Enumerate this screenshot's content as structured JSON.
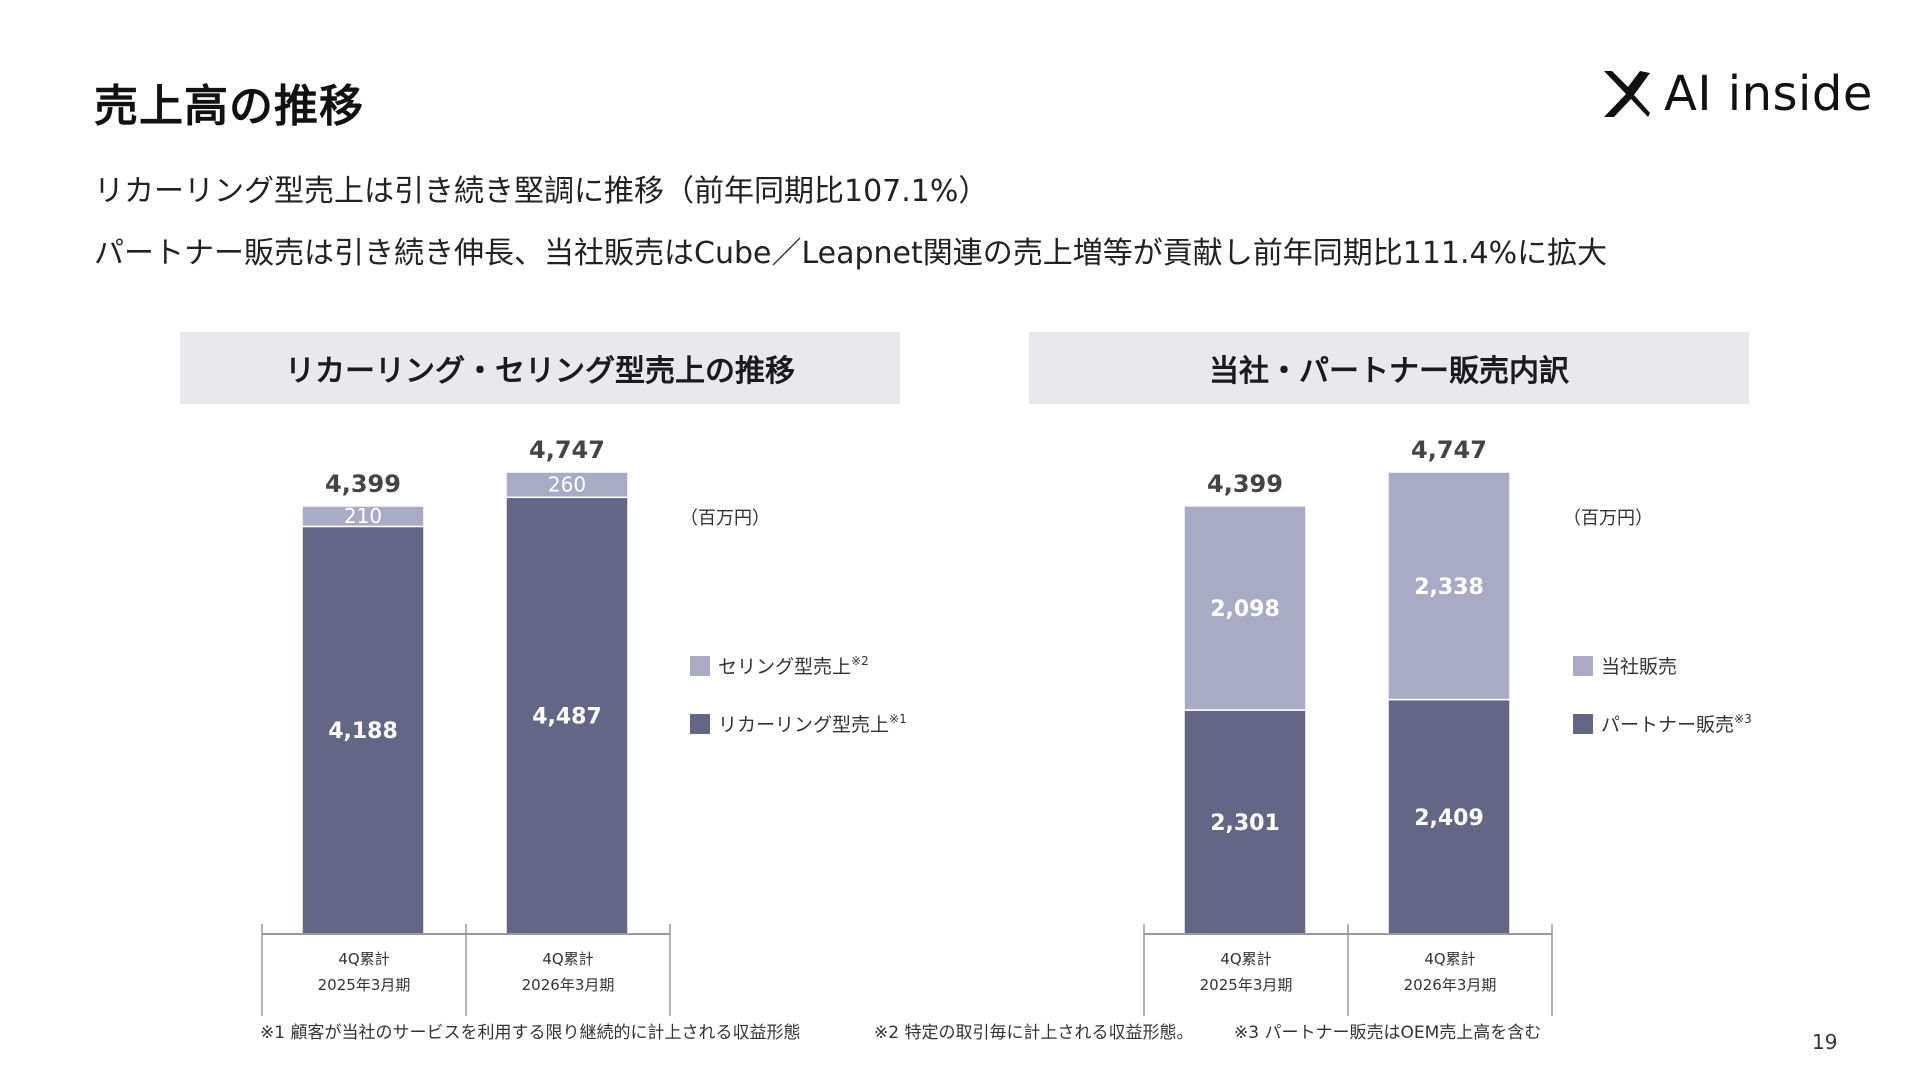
{
  "page": {
    "title": "売上高の推移",
    "logo_text": "AI inside",
    "bullets": [
      "リカーリング型売上は引き続き堅調に推移（前年同期比107.1%）",
      "パートナー販売は引き続き伸長、当社販売はCube／Leapnet関連の売上増等が貢献し前年同期比111.4%に拡大"
    ],
    "footnotes": [
      "※1 顧客が当社のサービスを利用する限り継続的に計上される収益形態",
      "※2 特定の取引毎に計上される収益形態。",
      "※3 パートナー販売はOEM売上高を含む"
    ],
    "page_number": "19"
  },
  "colors": {
    "light": "#a9abc6",
    "dark": "#646685",
    "header_bg": "#e9e9ed",
    "axis": "#999999"
  },
  "chart_data": [
    {
      "type": "bar",
      "stacked": true,
      "title": "リカーリング・セリング型売上の推移",
      "unit": "（百万円）",
      "categories": [
        {
          "line1": "4Q累計",
          "line2": "2025年3月期"
        },
        {
          "line1": "4Q累計",
          "line2": "2026年3月期"
        }
      ],
      "totals": [
        "4,399",
        "4,747"
      ],
      "series": [
        {
          "name": "リカーリング型売上",
          "note": "※1",
          "color": "dark",
          "values": [
            4188,
            4487
          ],
          "labels": [
            "4,188",
            "4,487"
          ]
        },
        {
          "name": "セリング型売上",
          "note": "※2",
          "color": "light",
          "values": [
            210,
            260
          ],
          "labels": [
            "210",
            "260"
          ]
        }
      ],
      "legend_order": [
        1,
        0
      ],
      "ylim": [
        0,
        4747
      ]
    },
    {
      "type": "bar",
      "stacked": true,
      "title": "当社・パートナー販売内訳",
      "unit": "（百万円）",
      "categories": [
        {
          "line1": "4Q累計",
          "line2": "2025年3月期"
        },
        {
          "line1": "4Q累計",
          "line2": "2026年3月期"
        }
      ],
      "totals": [
        "4,399",
        "4,747"
      ],
      "series": [
        {
          "name": "パートナー販売",
          "note": "※3",
          "color": "dark",
          "values": [
            2301,
            2409
          ],
          "labels": [
            "2,301",
            "2,409"
          ]
        },
        {
          "name": "当社販売",
          "note": "",
          "color": "light",
          "values": [
            2098,
            2338
          ],
          "labels": [
            "2,098",
            "2,338"
          ]
        }
      ],
      "legend_order": [
        1,
        0
      ],
      "ylim": [
        0,
        4747
      ]
    }
  ]
}
